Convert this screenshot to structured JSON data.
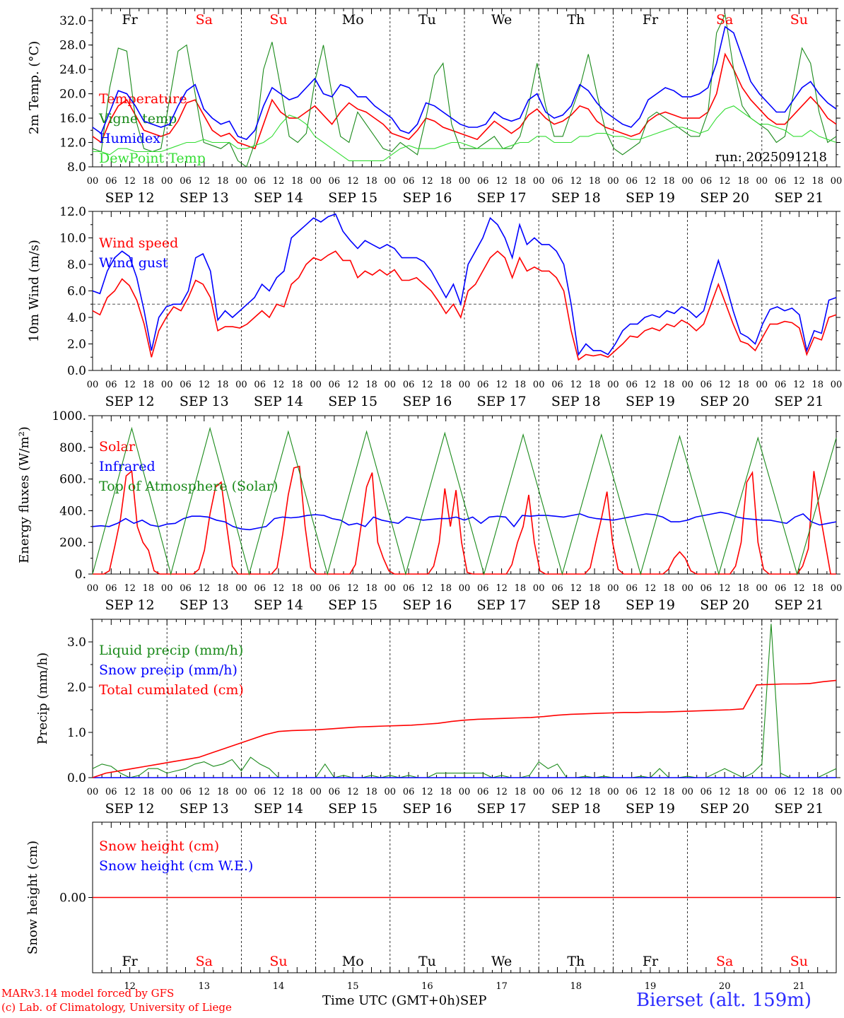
{
  "days": [
    "Fr",
    "Sa",
    "Su",
    "Mo",
    "Tu",
    "We",
    "Th",
    "Fr",
    "Sa",
    "Su"
  ],
  "weekend_days": [
    1,
    2,
    8,
    9
  ],
  "dates": [
    "SEP 12",
    "SEP 13",
    "SEP 14",
    "SEP 15",
    "SEP 16",
    "SEP 17",
    "SEP 18",
    "SEP 19",
    "SEP 20",
    "SEP 21"
  ],
  "day_numbers": [
    "12",
    "13",
    "14",
    "15",
    "16",
    "17",
    "18",
    "19",
    "20",
    "21"
  ],
  "hour_ticks": [
    "00",
    "06",
    "12",
    "18"
  ],
  "final_hour": "00",
  "colors": {
    "red": "#ff0000",
    "green": "#1a8a1a",
    "blue": "#0000ff",
    "lightgreen": "#33dd33",
    "weekend": "#ff0000"
  },
  "footer": {
    "model": "MARv3.14 model forced by GFS",
    "lab": "(c) Lab. of Climatology, University of Liege",
    "axis": "Time UTC (GMT+0h)",
    "month": "SEP",
    "station": "Bierset (alt. 159m)"
  },
  "chart_data": [
    {
      "type": "line",
      "ylabel": "2m Temp. (°C)",
      "ylim": [
        8,
        34
      ],
      "yticks": [
        "8.0",
        "12.0",
        "16.0",
        "20.0",
        "24.0",
        "28.0",
        "32.0"
      ],
      "annotation": "run: 2025091218",
      "series": [
        {
          "name": "Temperature",
          "color": "red",
          "values": [
            13,
            12,
            15.5,
            18,
            19,
            16.5,
            14,
            13.5,
            13,
            13.5,
            15.5,
            18.5,
            19,
            16.5,
            14,
            13,
            13.5,
            12,
            11.5,
            11,
            15,
            19,
            17,
            16,
            16,
            17,
            18,
            16.5,
            15,
            17,
            18.5,
            17.5,
            17,
            16,
            15,
            13.5,
            13,
            12.5,
            14,
            16,
            15.5,
            14.5,
            14,
            13.5,
            13,
            12.5,
            14,
            15.5,
            14.5,
            13.5,
            14.5,
            16.5,
            17.5,
            16,
            15,
            15.5,
            16.5,
            18,
            17.5,
            15.5,
            14.5,
            14,
            13.5,
            13,
            13.5,
            15.5,
            16.5,
            17,
            16.5,
            16,
            16,
            16,
            17,
            20,
            26.5,
            24,
            21,
            19,
            17.5,
            16,
            15,
            15,
            16.5,
            18,
            19.5,
            18,
            16,
            15
          ]
        },
        {
          "name": "Vigne temp",
          "color": "green",
          "values": [
            11,
            10.5,
            21,
            27.5,
            27,
            16,
            11,
            10.5,
            11,
            19,
            27,
            28,
            20,
            12,
            11.5,
            11,
            12,
            9,
            8,
            12,
            24,
            28.5,
            21,
            13,
            12,
            13.5,
            22,
            28,
            20,
            13,
            12,
            17,
            15,
            13,
            11,
            10.5,
            12,
            11,
            10,
            16,
            23,
            25,
            15,
            11,
            11,
            11,
            12,
            13,
            11,
            11,
            13,
            18,
            25,
            18,
            13,
            13,
            17,
            21,
            26.5,
            20,
            14,
            11,
            10,
            11,
            12,
            16,
            17,
            16,
            15,
            14,
            13,
            13,
            17,
            30,
            33,
            24,
            18,
            16,
            15,
            14,
            12,
            13,
            20,
            27.5,
            25,
            17,
            12,
            13
          ]
        },
        {
          "name": "Humidex",
          "color": "blue",
          "values": [
            14.5,
            13.5,
            17,
            20.5,
            20,
            18,
            15.5,
            15,
            14.5,
            15,
            18,
            20.5,
            21.5,
            17.5,
            16,
            15,
            15.5,
            13,
            12.5,
            14,
            18,
            21,
            20,
            19,
            19.5,
            21,
            22.5,
            20,
            19.5,
            21.5,
            21,
            19.5,
            19.5,
            18,
            17,
            16,
            14,
            13.5,
            15,
            18.5,
            18,
            17,
            16,
            15,
            14.5,
            14.5,
            15,
            17,
            16,
            15.5,
            16,
            19,
            20,
            17,
            16,
            16.5,
            18,
            21.5,
            20.5,
            18.5,
            17,
            16,
            15,
            14.5,
            16,
            19,
            20,
            21,
            20.5,
            19.5,
            19.5,
            20,
            21,
            25,
            31,
            30,
            26,
            22,
            20,
            18.5,
            17,
            17,
            19,
            21,
            22,
            20,
            18.5,
            17.5
          ]
        },
        {
          "name": "DewPoint Temp",
          "color": "lightgreen",
          "values": [
            10.5,
            10.5,
            10,
            11,
            11,
            10.5,
            10.5,
            10.5,
            10.5,
            11,
            11.5,
            12,
            12,
            12.5,
            12,
            12,
            12,
            11,
            11,
            11.5,
            12,
            13,
            15,
            16.5,
            16,
            15,
            13,
            12,
            11,
            10,
            9,
            9,
            9,
            9,
            9,
            10,
            11,
            11.5,
            11,
            11,
            11,
            11.5,
            12,
            12,
            11.5,
            11,
            11,
            11,
            11,
            11.5,
            12,
            12,
            13,
            13,
            12,
            12,
            12,
            13,
            13,
            13.5,
            13.5,
            13,
            13,
            12.5,
            12.5,
            13,
            13.5,
            14,
            14.5,
            14.5,
            14,
            13.5,
            14,
            16,
            17.5,
            18,
            17,
            16,
            15,
            15,
            14.5,
            14,
            13,
            13,
            14,
            13,
            12.5,
            12
          ]
        }
      ]
    },
    {
      "type": "line",
      "ylabel": "10m Wind (m/s)",
      "ylim": [
        0,
        12
      ],
      "yticks": [
        "0.0",
        "2.0",
        "4.0",
        "6.0",
        "8.0",
        "10.0",
        "12.0"
      ],
      "reference_line": 5.0,
      "series": [
        {
          "name": "Wind speed",
          "color": "red",
          "values": [
            4.5,
            4.2,
            5.5,
            6,
            6.9,
            6.4,
            5.3,
            3.5,
            1,
            3,
            4,
            4.8,
            4.5,
            5.5,
            6.8,
            6.5,
            5.5,
            3,
            3.3,
            3.3,
            3.2,
            3.5,
            4,
            4.5,
            4,
            5,
            4.8,
            6.5,
            7,
            8,
            8.5,
            8.3,
            8.7,
            9,
            8.3,
            8.3,
            7,
            7.5,
            7.2,
            7.6,
            7.2,
            7.6,
            6.8,
            6.8,
            7,
            6.5,
            6,
            5.2,
            4.3,
            5,
            4,
            6,
            6.5,
            7.5,
            8.5,
            9,
            8.5,
            7,
            8.5,
            7.5,
            7.8,
            7.5,
            7.5,
            7,
            6,
            3,
            0.8,
            1.2,
            1.1,
            1.2,
            1,
            1.5,
            2,
            2.6,
            2.5,
            3,
            3.2,
            3,
            3.5,
            3.3,
            3.8,
            3.5,
            3,
            3.5,
            5,
            6.5,
            5,
            3.5,
            2.2,
            2,
            1.5,
            2.5,
            3.5,
            3.5,
            3.7,
            3.6,
            3.2,
            1.2,
            2.5,
            2.3,
            4,
            4.2
          ]
        },
        {
          "name": "Wind gust",
          "color": "blue",
          "values": [
            6,
            5.8,
            7.5,
            8.5,
            9,
            8.6,
            7,
            4.5,
            1.5,
            4,
            4.8,
            5,
            5,
            6,
            8.5,
            8.8,
            7.5,
            3.8,
            4.5,
            4,
            4.5,
            5,
            5.5,
            6.5,
            6,
            7,
            7.5,
            10,
            10.5,
            11,
            11.5,
            11.2,
            11.6,
            11.8,
            10.5,
            9.8,
            9.2,
            9.8,
            9.5,
            9.2,
            9.5,
            9.2,
            8.5,
            8.5,
            8.5,
            8.2,
            7.5,
            6.5,
            5.5,
            6.5,
            5,
            8,
            9,
            10,
            11.5,
            11,
            10,
            8.5,
            11,
            9.5,
            10,
            9.5,
            9.5,
            9,
            8,
            5,
            1.2,
            2,
            1.5,
            1.5,
            1.2,
            2,
            3,
            3.5,
            3.5,
            4,
            4.2,
            4,
            4.5,
            4.3,
            4.8,
            4.5,
            4,
            4.5,
            6.5,
            8.3,
            6.5,
            4.5,
            2.8,
            2.5,
            2,
            3.5,
            4.6,
            4.8,
            4.5,
            4.7,
            4.2,
            1.5,
            3,
            2.8,
            5.3,
            5.5
          ]
        }
      ]
    },
    {
      "type": "line",
      "ylabel": "Energy fluxes (W/m²)",
      "ylim": [
        0,
        1000
      ],
      "yticks": [
        "0.",
        "200.",
        "400.",
        "600.",
        "800.",
        "1000."
      ],
      "series": [
        {
          "name": "Solar",
          "color": "red",
          "values": [
            0,
            0,
            0,
            20,
            180,
            350,
            620,
            650,
            300,
            200,
            150,
            20,
            0,
            0,
            0,
            0,
            0,
            0,
            0,
            30,
            150,
            380,
            550,
            580,
            300,
            50,
            0,
            0,
            0,
            0,
            0,
            0,
            0,
            40,
            250,
            500,
            670,
            680,
            300,
            40,
            0,
            0,
            0,
            0,
            0,
            0,
            0,
            60,
            300,
            550,
            640,
            200,
            100,
            20,
            0,
            0,
            0,
            0,
            0,
            0,
            0,
            50,
            200,
            540,
            300,
            530,
            200,
            10,
            0,
            0,
            0,
            0,
            0,
            0,
            0,
            60,
            200,
            300,
            500,
            200,
            20,
            0,
            0,
            0,
            0,
            0,
            0,
            0,
            0,
            40,
            200,
            350,
            520,
            200,
            30,
            0,
            0,
            0,
            0,
            0,
            0,
            0,
            0,
            30,
            100,
            140,
            100,
            20,
            0,
            0,
            0,
            0,
            0,
            0,
            0,
            50,
            200,
            580,
            640,
            200,
            30,
            0,
            0,
            0,
            0,
            0,
            0,
            50,
            160,
            650,
            400,
            200,
            0,
            0
          ]
        },
        {
          "name": "Infrared",
          "color": "blue",
          "values": [
            300,
            305,
            300,
            320,
            350,
            320,
            340,
            310,
            300,
            315,
            320,
            350,
            365,
            365,
            360,
            340,
            330,
            300,
            285,
            280,
            290,
            300,
            350,
            360,
            355,
            360,
            370,
            375,
            370,
            350,
            340,
            310,
            320,
            300,
            360,
            340,
            330,
            320,
            360,
            350,
            340,
            345,
            350,
            350,
            360,
            340,
            360,
            320,
            360,
            365,
            360,
            300,
            370,
            365,
            370,
            370,
            365,
            360,
            370,
            380,
            360,
            350,
            345,
            340,
            350,
            360,
            370,
            380,
            375,
            360,
            330,
            330,
            340,
            360,
            370,
            380,
            390,
            380,
            360,
            350,
            345,
            340,
            340,
            330,
            320,
            360,
            380,
            330,
            310,
            320,
            330
          ]
        },
        {
          "name": "Top of Atmosphere (Solar)",
          "color": "green",
          "values": [
            0,
            920,
            0,
            920,
            0,
            900,
            0,
            900,
            0,
            890,
            0,
            880,
            0,
            880,
            0,
            870,
            0,
            860,
            0,
            860
          ]
        }
      ]
    },
    {
      "type": "line",
      "ylabel": "Precip (mm/h)",
      "ylim": [
        0,
        3.5
      ],
      "yticks": [
        "0.0",
        "1.0",
        "2.0",
        "3.0"
      ],
      "series": [
        {
          "name": "Liquid precip (mm/h)",
          "color": "green",
          "values": [
            0.2,
            0.3,
            0.25,
            0.1,
            0,
            0.05,
            0.2,
            0.2,
            0.1,
            0.15,
            0.2,
            0.3,
            0.35,
            0.25,
            0.3,
            0.4,
            0.15,
            0.45,
            0.3,
            0.2,
            0,
            0,
            0,
            0,
            0,
            0.3,
            0,
            0.05,
            0,
            0,
            0.05,
            0,
            0.05,
            0,
            0.05,
            0,
            0,
            0.1,
            0.1,
            0.1,
            0.1,
            0.1,
            0.1,
            0,
            0.05,
            0,
            0,
            0.05,
            0.35,
            0.2,
            0.3,
            0,
            0,
            0.03,
            0,
            0.03,
            0,
            0,
            0,
            0.03,
            0,
            0.2,
            0,
            0,
            0.03,
            0,
            0,
            0.1,
            0.2,
            0.1,
            0,
            0.1,
            0.3,
            3.4,
            0.1,
            0,
            0,
            0,
            0,
            0.1,
            0.2
          ]
        },
        {
          "name": "Snow precip (mm/h)",
          "color": "blue",
          "values": [
            0,
            0
          ]
        },
        {
          "name": "Total cumulated (cm)",
          "color": "red",
          "values": [
            0,
            0.1,
            0.15,
            0.2,
            0.25,
            0.3,
            0.35,
            0.4,
            0.45,
            0.55,
            0.65,
            0.75,
            0.85,
            0.95,
            1.02,
            1.04,
            1.05,
            1.06,
            1.08,
            1.1,
            1.12,
            1.13,
            1.14,
            1.15,
            1.16,
            1.18,
            1.2,
            1.24,
            1.27,
            1.29,
            1.3,
            1.31,
            1.32,
            1.33,
            1.35,
            1.38,
            1.4,
            1.41,
            1.42,
            1.43,
            1.44,
            1.44,
            1.45,
            1.45,
            1.46,
            1.47,
            1.48,
            1.49,
            1.5,
            1.52,
            2.05,
            2.06,
            2.07,
            2.07,
            2.08,
            2.12,
            2.15
          ]
        }
      ]
    },
    {
      "type": "line",
      "ylabel": "Snow height (cm)",
      "ylim": [
        -1,
        1
      ],
      "yticks": [
        "0.00"
      ],
      "series": [
        {
          "name": "Snow height (cm)",
          "color": "red",
          "values": [
            0,
            0
          ]
        },
        {
          "name": "Snow height (cm W.E.)",
          "color": "blue",
          "values": []
        }
      ]
    }
  ]
}
